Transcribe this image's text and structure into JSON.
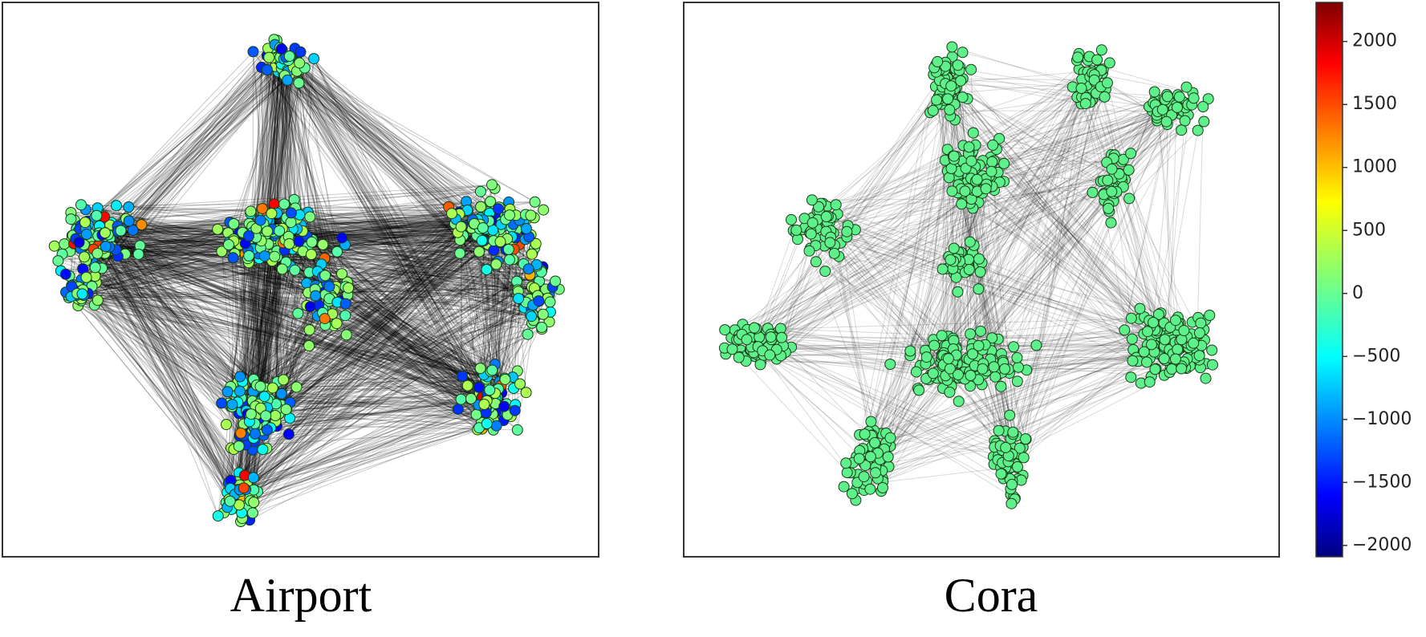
{
  "panels": [
    {
      "title": "Airport"
    },
    {
      "title": "Cora"
    }
  ],
  "chart_data": {
    "type": "colorbar",
    "colormap": "jet",
    "ylim": [
      -2090,
      2310
    ],
    "yticks": [
      {
        "value": -2000,
        "label": "−2000"
      },
      {
        "value": -1500,
        "label": "−1500"
      },
      {
        "value": -1000,
        "label": "−1000"
      },
      {
        "value": -500,
        "label": "−500"
      },
      0,
      500,
      1000,
      1500,
      2000
    ]
  }
}
